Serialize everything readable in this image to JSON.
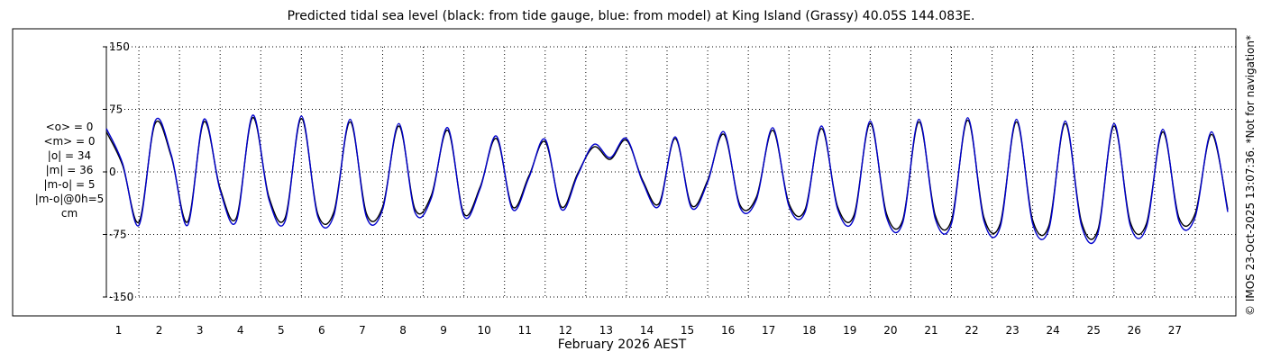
{
  "title": "Predicted tidal sea level (black: from tide gauge, blue: from model) at King Island (Grassy) 40.05S 144.083E.",
  "stats_lines": [
    "<o> = 0",
    "<m> = 0",
    "|o| = 34",
    "|m| = 36",
    "|m-o| = 5",
    "|m-o|@0h=5",
    "cm"
  ],
  "credit": "© IMOS 23-Oct-2025 13:07:36. *Not for navigation*",
  "colors": {
    "observed": "#000000",
    "model": "#0000cc",
    "grid": "#000000"
  },
  "chart_data": {
    "type": "line",
    "title": "Predicted tidal sea level (black: from tide gauge, blue: from model) at King Island (Grassy) 40.05S 144.083E.",
    "xlabel": "February 2026 AEST",
    "ylabel": "",
    "ylim": [
      -150,
      150
    ],
    "xlim": [
      0.2,
      28
    ],
    "x_ticks": [
      1,
      2,
      3,
      4,
      5,
      6,
      7,
      8,
      9,
      10,
      11,
      12,
      13,
      14,
      15,
      16,
      17,
      18,
      19,
      20,
      21,
      22,
      23,
      24,
      25,
      26,
      27
    ],
    "y_ticks": [
      -150,
      -75,
      0,
      75,
      150
    ],
    "y_tick_labels": [
      "-150",
      "-75",
      "0",
      "75",
      "150"
    ],
    "grid": "dotted horizontal and vertical",
    "series": [
      {
        "name": "from tide gauge",
        "color": "#000000",
        "x": [
          0.2,
          0.6,
          1.0,
          1.4,
          1.8,
          2.2,
          2.6,
          3.0,
          3.4,
          3.8,
          4.2,
          4.6,
          5.0,
          5.4,
          5.8,
          6.2,
          6.6,
          7.0,
          7.4,
          7.8,
          8.2,
          8.6,
          9.0,
          9.4,
          9.8,
          10.2,
          10.6,
          11.0,
          11.4,
          11.8,
          12.2,
          12.6,
          13.0,
          13.4,
          13.8,
          14.2,
          14.6,
          15.0,
          15.4,
          15.8,
          16.2,
          16.6,
          17.0,
          17.4,
          17.8,
          18.2,
          18.6,
          19.0,
          19.4,
          19.8,
          20.2,
          20.6,
          21.0,
          21.4,
          21.8,
          22.2,
          22.6,
          23.0,
          23.4,
          23.8,
          24.2,
          24.6,
          25.0,
          25.4,
          25.8,
          26.2,
          26.6,
          27.0,
          27.4,
          27.8
        ],
        "y": [
          48,
          8,
          -60,
          58,
          18,
          -60,
          60,
          -20,
          -55,
          65,
          -30,
          -55,
          64,
          -50,
          -48,
          60,
          -50,
          -42,
          55,
          -45,
          -28,
          50,
          -50,
          -18,
          40,
          -42,
          -5,
          36,
          -42,
          -2,
          30,
          15,
          38,
          -10,
          -38,
          40,
          -40,
          -10,
          45,
          -40,
          -30,
          50,
          -38,
          -45,
          52,
          -42,
          -52,
          58,
          -50,
          -58,
          60,
          -52,
          -58,
          62,
          -55,
          -62,
          60,
          -58,
          -64,
          58,
          -60,
          -70,
          55,
          -60,
          -62,
          48,
          -55,
          -50,
          45,
          -45
        ]
      },
      {
        "name": "from model",
        "color": "#0000cc",
        "x": [
          0.2,
          0.6,
          1.0,
          1.4,
          1.8,
          2.2,
          2.6,
          3.0,
          3.4,
          3.8,
          4.2,
          4.6,
          5.0,
          5.4,
          5.8,
          6.2,
          6.6,
          7.0,
          7.4,
          7.8,
          8.2,
          8.6,
          9.0,
          9.4,
          9.8,
          10.2,
          10.6,
          11.0,
          11.4,
          11.8,
          12.2,
          12.6,
          13.0,
          13.4,
          13.8,
          14.2,
          14.6,
          15.0,
          15.4,
          15.8,
          16.2,
          16.6,
          17.0,
          17.4,
          17.8,
          18.2,
          18.6,
          19.0,
          19.4,
          19.8,
          20.2,
          20.6,
          21.0,
          21.4,
          21.8,
          22.2,
          22.6,
          23.0,
          23.4,
          23.8,
          24.2,
          24.6,
          25.0,
          25.4,
          25.8,
          26.2,
          26.6,
          27.0,
          27.4,
          27.8
        ],
        "y": [
          52,
          10,
          -64,
          61,
          20,
          -64,
          63,
          -22,
          -59,
          68,
          -33,
          -59,
          67,
          -53,
          -52,
          63,
          -54,
          -45,
          58,
          -49,
          -31,
          53,
          -53,
          -20,
          43,
          -45,
          -7,
          39,
          -45,
          -4,
          33,
          17,
          40,
          -12,
          -41,
          42,
          -43,
          -12,
          48,
          -43,
          -33,
          53,
          -41,
          -48,
          55,
          -45,
          -56,
          61,
          -54,
          -61,
          63,
          -56,
          -62,
          65,
          -59,
          -66,
          63,
          -62,
          -68,
          61,
          -64,
          -74,
          58,
          -64,
          -66,
          51,
          -59,
          -54,
          48,
          -48
        ]
      }
    ]
  }
}
